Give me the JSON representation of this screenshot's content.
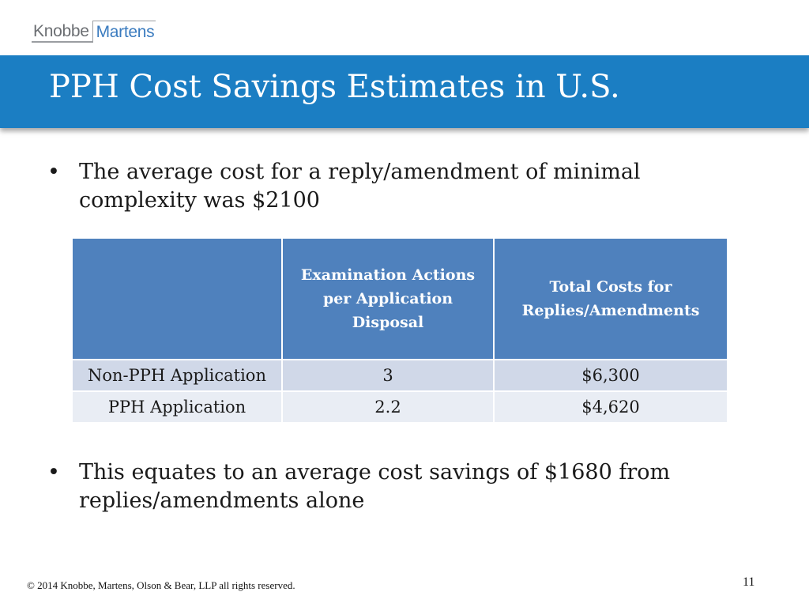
{
  "logo": {
    "part1": "Knobbe",
    "part2": "Martens"
  },
  "slide": {
    "title": "PPH Cost Savings Estimates in U.S.",
    "bullet_symbol": "•",
    "bullets": [
      "The average cost for a reply/amendment of minimal complexity was $2100",
      "This equates to an average cost savings of $1680 from replies/amendments alone"
    ]
  },
  "table": {
    "headers": [
      "",
      "Examination Actions per Application Disposal",
      "Total Costs for Replies/Amendments"
    ],
    "rows": [
      [
        "Non-PPH Application",
        "3",
        "$6,300"
      ],
      [
        "PPH Application",
        "2.2",
        "$4,620"
      ]
    ]
  },
  "footer": {
    "copyright": "© 2014  Knobbe, Martens, Olson & Bear, LLP all rights reserved.",
    "page_number": "11"
  },
  "colors": {
    "title_bar": "#1b7ec3",
    "table_header": "#4f81bd",
    "row_odd": "#d0d8e8",
    "row_even": "#e9edf4",
    "logo_blue": "#3a7bbf",
    "logo_gray": "#6b6e72"
  }
}
